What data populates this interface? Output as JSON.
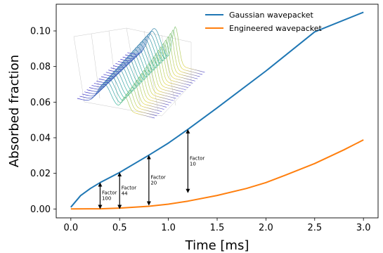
{
  "chart_data": {
    "type": "line",
    "xlabel": "Time [ms]",
    "ylabel": "Absorbed fraction",
    "xlim": [
      -0.15,
      3.15
    ],
    "ylim": [
      -0.005,
      0.115
    ],
    "x_ticks": [
      "0.0",
      "0.5",
      "1.0",
      "1.5",
      "2.0",
      "2.5",
      "3.0"
    ],
    "y_ticks": [
      "0.00",
      "0.02",
      "0.04",
      "0.06",
      "0.08",
      "0.10"
    ],
    "legend_position": "top-right",
    "grid": false,
    "series": [
      {
        "name": "Gaussian wavepacket",
        "color": "#1f77b4",
        "x": [
          0.0,
          0.1,
          0.2,
          0.3,
          0.5,
          0.8,
          1.0,
          1.2,
          1.5,
          2.0,
          2.5,
          3.0
        ],
        "y": [
          0.001,
          0.0075,
          0.0115,
          0.0148,
          0.0205,
          0.0302,
          0.037,
          0.0447,
          0.0568,
          0.0775,
          0.0995,
          0.1105
        ]
      },
      {
        "name": "Engineered wavepacket",
        "color": "#ff7f0e",
        "x": [
          0.0,
          0.3,
          0.5,
          0.8,
          1.0,
          1.2,
          1.5,
          1.8,
          2.0,
          2.2,
          2.5,
          2.8,
          3.0
        ],
        "y": [
          0.0,
          0.0001,
          0.0005,
          0.0015,
          0.0027,
          0.0044,
          0.0076,
          0.0115,
          0.0148,
          0.019,
          0.0255,
          0.0332,
          0.0388
        ]
      }
    ],
    "annotations": [
      {
        "x": 0.3,
        "y_low": 0.0,
        "y_high": 0.0148,
        "lines": [
          "Factor",
          "100"
        ]
      },
      {
        "x": 0.5,
        "y_low": 0.0,
        "y_high": 0.0205,
        "lines": [
          "Factor",
          "44"
        ]
      },
      {
        "x": 0.8,
        "y_low": 0.002,
        "y_high": 0.0302,
        "lines": [
          "Factor",
          "20"
        ]
      },
      {
        "x": 1.2,
        "y_low": 0.009,
        "y_high": 0.0447,
        "lines": [
          "Factor",
          "10"
        ]
      }
    ]
  }
}
